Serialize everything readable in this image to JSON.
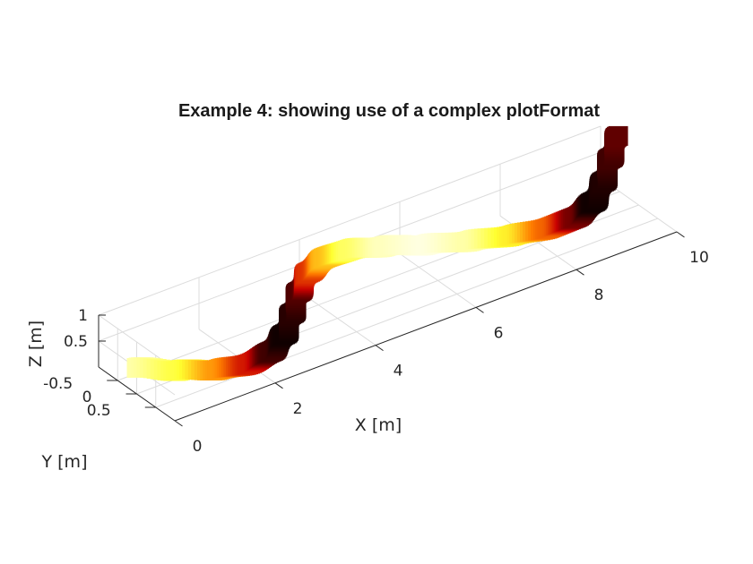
{
  "chart_data": {
    "type": "line",
    "title": "Example 4: showing use of a complex plotFormat",
    "xlabel": "X [m]",
    "ylabel": "Y [m]",
    "zlabel": "Z [m]",
    "xlim": [
      0,
      10
    ],
    "ylim": [
      -1,
      1
    ],
    "zlim": [
      0,
      1
    ],
    "x_ticks": [
      0,
      2,
      4,
      6,
      8,
      10
    ],
    "x_tick_labels": [
      "0",
      "2",
      "4",
      "6",
      "8",
      "10"
    ],
    "y_ticks": [
      -0.5,
      0,
      0.5
    ],
    "y_tick_labels": [
      "-0.5",
      "0",
      "0.5"
    ],
    "z_ticks": [
      0.5,
      1
    ],
    "z_tick_labels": [
      "0.5",
      "1"
    ],
    "grid": true,
    "colormap": "hot",
    "colormap_colors": [
      "#000000",
      "#c80000",
      "#ff7f00",
      "#ffff30",
      "#ffffe0"
    ],
    "series": [
      {
        "marker": "square",
        "x": [
          0.0,
          0.5,
          1.0,
          1.5,
          2.0,
          2.5,
          3.0,
          3.5,
          4.0,
          4.5,
          5.0,
          5.5,
          6.0,
          6.5,
          7.0,
          7.5,
          8.0,
          8.5,
          9.0,
          9.5,
          10.0
        ],
        "y": [
          0.0,
          0.48,
          0.84,
          1.0,
          0.91,
          0.6,
          0.14,
          -0.35,
          -0.76,
          -0.98,
          -0.96,
          -0.71,
          -0.28,
          0.22,
          0.66,
          0.94,
          0.99,
          0.8,
          0.41,
          -0.08,
          -0.54
        ],
        "z": [
          0.5,
          0.52,
          0.54,
          0.55,
          0.56,
          0.55,
          0.53,
          0.51,
          0.49,
          0.48,
          0.47,
          0.48,
          0.55,
          0.7,
          0.85,
          0.95,
          1.0,
          1.02,
          1.03,
          1.04,
          1.05
        ],
        "c": [
          0.92,
          0.78,
          0.55,
          0.3,
          0.08,
          0.02,
          0.05,
          0.1,
          0.35,
          0.62,
          0.82,
          0.95,
          1.0,
          0.92,
          0.72,
          0.45,
          0.15,
          0.02,
          0.04,
          0.08,
          0.12
        ]
      }
    ]
  }
}
